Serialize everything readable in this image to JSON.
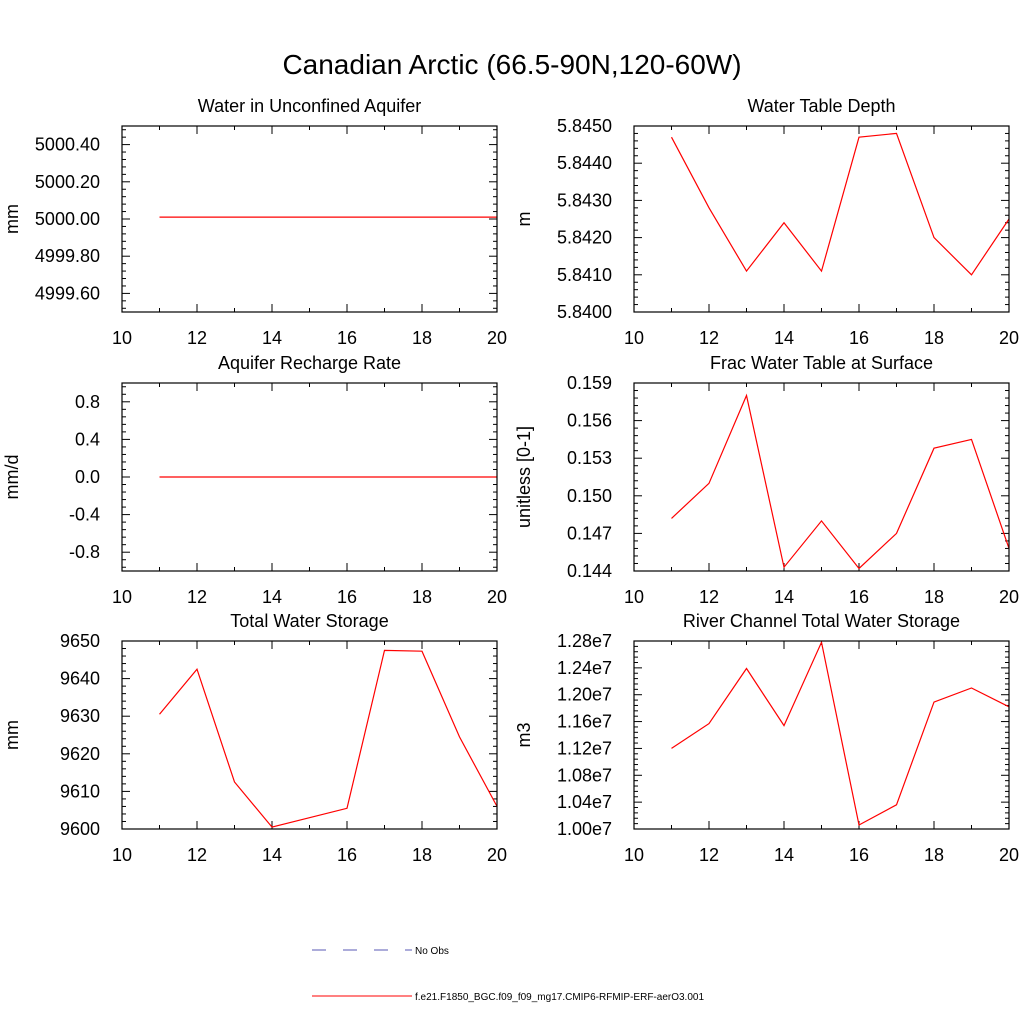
{
  "figure": {
    "title": "Canadian Arctic (66.5-90N,120-60W)",
    "legend": [
      {
        "label": "No Obs",
        "color": "#5a5ab4",
        "dash": true
      },
      {
        "label": "f.e21.F1850_BGC.f09_f09_mg17.CMIP6-RFMIP-ERF-aerO3.001",
        "color": "#ff0000",
        "dash": false
      }
    ]
  },
  "chart_data": [
    {
      "type": "line",
      "title": "Water in Unconfined Aquifer",
      "ylabel": "mm",
      "xlim": [
        10,
        20
      ],
      "ylim": [
        4999.5,
        5000.5
      ],
      "xticks": [
        10,
        12,
        14,
        16,
        18,
        20
      ],
      "xtick_labels": [
        "10",
        "12",
        "14",
        "16",
        "18",
        "20"
      ],
      "yticks": [
        4999.6,
        4999.8,
        5000.0,
        5000.2,
        5000.4
      ],
      "ytick_labels": [
        "4999.60",
        "4999.80",
        "5000.00",
        "5000.20",
        "5000.40"
      ],
      "series": [
        {
          "color": "#ff0000",
          "x": [
            11,
            12,
            13,
            14,
            15,
            16,
            17,
            18,
            19,
            20
          ],
          "y": [
            5000.01,
            5000.01,
            5000.01,
            5000.01,
            5000.01,
            5000.01,
            5000.01,
            5000.01,
            5000.01,
            5000.01
          ]
        }
      ]
    },
    {
      "type": "line",
      "title": "Water Table Depth",
      "ylabel": "m",
      "xlim": [
        10,
        20
      ],
      "ylim": [
        5.84,
        5.845
      ],
      "xticks": [
        10,
        12,
        14,
        16,
        18,
        20
      ],
      "xtick_labels": [
        "10",
        "12",
        "14",
        "16",
        "18",
        "20"
      ],
      "yticks": [
        5.84,
        5.841,
        5.842,
        5.843,
        5.844,
        5.845
      ],
      "ytick_labels": [
        "5.8400",
        "5.8410",
        "5.8420",
        "5.8430",
        "5.8440",
        "5.8450"
      ],
      "series": [
        {
          "color": "#ff0000",
          "x": [
            11,
            12,
            13,
            14,
            15,
            16,
            17,
            18,
            19,
            20
          ],
          "y": [
            5.8447,
            5.8428,
            5.8411,
            5.8424,
            5.8411,
            5.8447,
            5.8448,
            5.842,
            5.841,
            5.8425
          ]
        }
      ]
    },
    {
      "type": "line",
      "title": "Aquifer Recharge Rate",
      "ylabel": "mm/d",
      "xlim": [
        10,
        20
      ],
      "ylim": [
        -1,
        1
      ],
      "xticks": [
        10,
        12,
        14,
        16,
        18,
        20
      ],
      "xtick_labels": [
        "10",
        "12",
        "14",
        "16",
        "18",
        "20"
      ],
      "yticks": [
        -0.8,
        -0.4,
        0,
        0.4,
        0.8
      ],
      "ytick_labels": [
        "-0.8",
        "-0.4",
        "0.0",
        "0.4",
        "0.8"
      ],
      "series": [
        {
          "color": "#ff0000",
          "x": [
            11,
            12,
            13,
            14,
            15,
            16,
            17,
            18,
            19,
            20
          ],
          "y": [
            0,
            0,
            0,
            0,
            0,
            0,
            0,
            0,
            0,
            0
          ]
        }
      ]
    },
    {
      "type": "line",
      "title": "Frac Water Table at Surface",
      "ylabel": "unitless [0-1]",
      "xlim": [
        10,
        20
      ],
      "ylim": [
        0.144,
        0.159
      ],
      "xticks": [
        10,
        12,
        14,
        16,
        18,
        20
      ],
      "xtick_labels": [
        "10",
        "12",
        "14",
        "16",
        "18",
        "20"
      ],
      "yticks": [
        0.144,
        0.147,
        0.15,
        0.153,
        0.156,
        0.159
      ],
      "ytick_labels": [
        "0.144",
        "0.147",
        "0.150",
        "0.153",
        "0.156",
        "0.159"
      ],
      "series": [
        {
          "color": "#ff0000",
          "x": [
            11,
            12,
            13,
            14,
            15,
            16,
            17,
            18,
            19,
            20
          ],
          "y": [
            0.1482,
            0.151,
            0.158,
            0.1443,
            0.148,
            0.1442,
            0.147,
            0.1538,
            0.1545,
            0.1458
          ]
        }
      ]
    },
    {
      "type": "line",
      "title": "Total Water Storage",
      "ylabel": "mm",
      "xlim": [
        10,
        20
      ],
      "ylim": [
        9600,
        9650
      ],
      "xticks": [
        10,
        12,
        14,
        16,
        18,
        20
      ],
      "xtick_labels": [
        "10",
        "12",
        "14",
        "16",
        "18",
        "20"
      ],
      "yticks": [
        9600,
        9610,
        9620,
        9630,
        9640,
        9650
      ],
      "ytick_labels": [
        "9600",
        "9610",
        "9620",
        "9630",
        "9640",
        "9650"
      ],
      "series": [
        {
          "color": "#ff0000",
          "x": [
            11,
            12,
            13,
            14,
            15,
            16,
            17,
            18,
            19,
            20
          ],
          "y": [
            9630.5,
            9642.5,
            9612.5,
            9600.5,
            9603,
            9605.5,
            9647.5,
            9647.3,
            9624.5,
            9606
          ]
        }
      ]
    },
    {
      "type": "line",
      "title": "River Channel Total Water Storage",
      "ylabel": "m3",
      "xlim": [
        10,
        20
      ],
      "ylim": [
        10000000,
        12800000
      ],
      "xticks": [
        10,
        12,
        14,
        16,
        18,
        20
      ],
      "xtick_labels": [
        "10",
        "12",
        "14",
        "16",
        "18",
        "20"
      ],
      "yticks": [
        10000000,
        10400000,
        10800000,
        11200000,
        11600000,
        12000000,
        12400000,
        12800000
      ],
      "ytick_labels": [
        "1.00e7",
        "1.04e7",
        "1.08e7",
        "1.12e7",
        "1.16e7",
        "1.20e7",
        "1.24e7",
        "1.28e7"
      ],
      "series": [
        {
          "color": "#ff0000",
          "x": [
            11,
            12,
            13,
            14,
            15,
            16,
            17,
            18,
            19,
            20
          ],
          "y": [
            11200000,
            11570000,
            12390000,
            11540000,
            12780000,
            10060000,
            10360000,
            11890000,
            12100000,
            11820000
          ]
        }
      ]
    }
  ]
}
